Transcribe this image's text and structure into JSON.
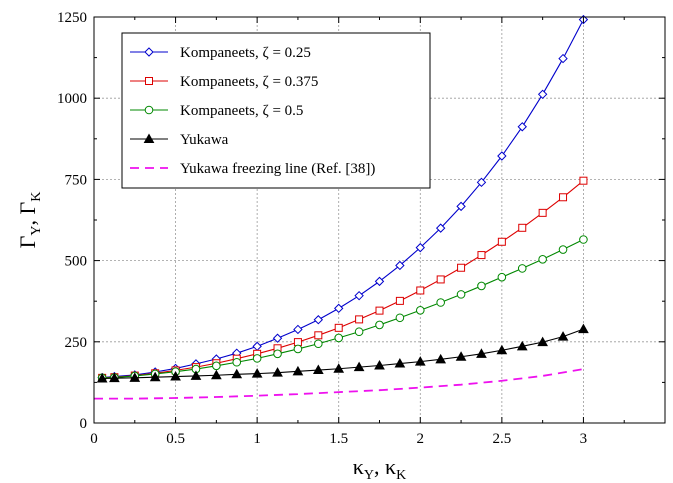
{
  "chart_data": {
    "type": "line",
    "xlabel": {
      "main1": "κ",
      "sub1": "Y",
      "sep": ", ",
      "main2": "κ",
      "sub2": "K"
    },
    "ylabel": {
      "main1": "Γ",
      "sub1": "Y",
      "sep": ", ",
      "main2": "Γ",
      "sub2": "K"
    },
    "xlim": [
      0,
      3.5
    ],
    "ylim": [
      0,
      1250
    ],
    "xticks": [
      0,
      0.5,
      1,
      1.5,
      2,
      2.5,
      3
    ],
    "xtick_labels": [
      "0",
      "0.5",
      "1",
      "1.5",
      "2",
      "2.5",
      "3"
    ],
    "yticks": [
      0,
      250,
      500,
      750,
      1000,
      1250
    ],
    "ytick_labels": [
      "0",
      "250",
      "500",
      "750",
      "1000",
      "1250"
    ],
    "grid": true,
    "legend_position": "top-left",
    "series": [
      {
        "name": "Kompaneets, ζ = 0.25",
        "color": "#0000cc",
        "marker": "diamond",
        "line": "solid",
        "x": [
          0.05,
          0.125,
          0.25,
          0.375,
          0.5,
          0.625,
          0.75,
          0.875,
          1,
          1.125,
          1.25,
          1.375,
          1.5,
          1.625,
          1.75,
          1.875,
          2,
          2.125,
          2.25,
          2.375,
          2.5,
          2.625,
          2.75,
          2.875,
          3
        ],
        "y": [
          140,
          143,
          148,
          157,
          168,
          182,
          197,
          215,
          236,
          261,
          288,
          318,
          353,
          392,
          436,
          485,
          540,
          600,
          667,
          741,
          822,
          912,
          1012,
          1122,
          1242
        ]
      },
      {
        "name": "Kompaneets, ζ = 0.375",
        "color": "#dd0000",
        "marker": "square",
        "line": "solid",
        "x": [
          0.05,
          0.125,
          0.25,
          0.375,
          0.5,
          0.625,
          0.75,
          0.875,
          1,
          1.125,
          1.25,
          1.375,
          1.5,
          1.625,
          1.75,
          1.875,
          2,
          2.125,
          2.25,
          2.375,
          2.5,
          2.625,
          2.75,
          2.875,
          3
        ],
        "y": [
          139,
          141,
          146,
          153,
          162,
          172,
          184,
          198,
          213,
          230,
          249,
          270,
          293,
          319,
          346,
          376,
          408,
          442,
          478,
          517,
          558,
          601,
          647,
          695,
          746
        ]
      },
      {
        "name": "Kompaneets, ζ = 0.5",
        "color": "#008800",
        "marker": "circle",
        "line": "solid",
        "x": [
          0.05,
          0.125,
          0.25,
          0.375,
          0.5,
          0.625,
          0.75,
          0.875,
          1,
          1.125,
          1.25,
          1.375,
          1.5,
          1.625,
          1.75,
          1.875,
          2,
          2.125,
          2.25,
          2.375,
          2.5,
          2.625,
          2.75,
          2.875,
          3
        ],
        "y": [
          139,
          140,
          145,
          151,
          158,
          166,
          176,
          187,
          199,
          213,
          228,
          244,
          262,
          281,
          302,
          324,
          347,
          371,
          396,
          422,
          449,
          476,
          504,
          534,
          565
        ]
      },
      {
        "name": "Yukawa",
        "color": "#000000",
        "marker": "triangle",
        "line": "solid",
        "x": [
          0.05,
          0.125,
          0.25,
          0.375,
          0.5,
          0.625,
          0.75,
          0.875,
          1,
          1.125,
          1.25,
          1.375,
          1.5,
          1.625,
          1.75,
          1.875,
          2,
          2.125,
          2.25,
          2.375,
          2.5,
          2.625,
          2.75,
          2.875,
          3
        ],
        "y": [
          137,
          138,
          139,
          141,
          143,
          145,
          147,
          150,
          152,
          155,
          159,
          163,
          167,
          172,
          177,
          183,
          189,
          196,
          204,
          213,
          224,
          236,
          249,
          266,
          289
        ]
      },
      {
        "name": "Yukawa freezing line (Ref. [38])",
        "color": "#ee11ee",
        "marker": "none",
        "line": "dashed",
        "x": [
          0,
          0.25,
          0.5,
          0.75,
          1,
          1.25,
          1.5,
          1.75,
          2,
          2.25,
          2.5,
          2.75,
          3
        ],
        "y": [
          75,
          75,
          77,
          80,
          84,
          89,
          95,
          101,
          109,
          118,
          130,
          145,
          166
        ]
      }
    ]
  }
}
